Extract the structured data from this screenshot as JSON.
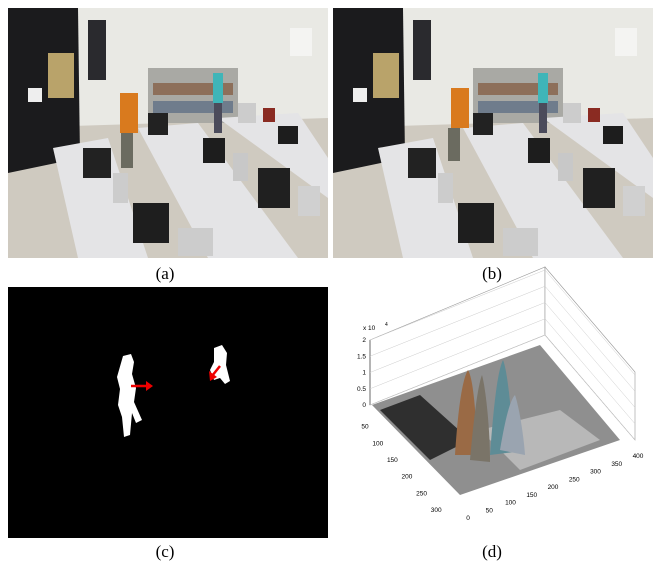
{
  "panels": [
    {
      "caption": "(a)"
    },
    {
      "caption": "(b)"
    },
    {
      "caption": "(c)"
    },
    {
      "caption": "(d)"
    }
  ],
  "plot": {
    "multiplier": "x 10",
    "exponent": "4",
    "zticks": [
      "0",
      "0.5",
      "1",
      "1.5",
      "2"
    ],
    "yticks": [
      "50",
      "100",
      "150",
      "200",
      "250",
      "300"
    ],
    "xticks": [
      "0",
      "50",
      "100",
      "150",
      "200",
      "250",
      "300",
      "350",
      "400"
    ]
  }
}
